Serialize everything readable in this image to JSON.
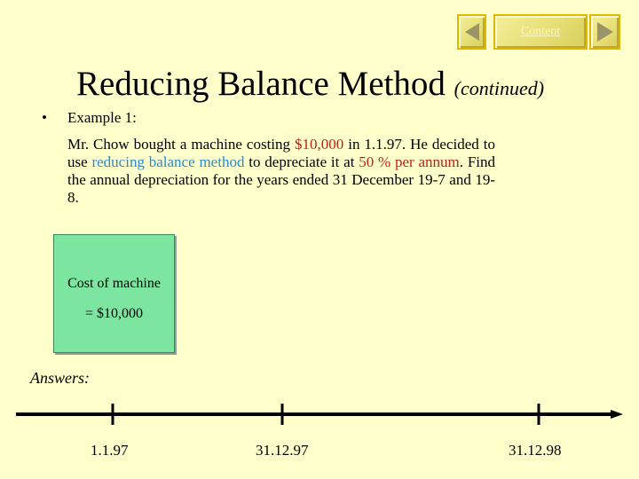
{
  "nav": {
    "content_label": "Content"
  },
  "slide": {
    "title": "Reducing Balance Method",
    "title_sub": "(continued)",
    "bullet": "•",
    "example_label": "Example 1:",
    "para": {
      "p1": "Mr. Chow bought a machine costing ",
      "amount": "$10,000",
      "p2": " in 1.1.97.  He decided to use ",
      "method": "reducing balance method",
      "p3": " to depreciate it at ",
      "rate": "50 % per annum",
      "p4": ".  Find the annual depreciation for the years ended 31 December 19-7 and 19-8."
    },
    "cost_box": {
      "line1": "Cost of machine",
      "line2": "= $10,000"
    },
    "answers_label": "Answers:",
    "timeline_labels": [
      "1.1.97",
      "31.12.97",
      "31.12.98"
    ]
  },
  "colors": {
    "background": "#ffffcc",
    "highlight_red": "#c0201a",
    "highlight_blue": "#2a8ad0",
    "box_green": "#7ce6a0"
  }
}
